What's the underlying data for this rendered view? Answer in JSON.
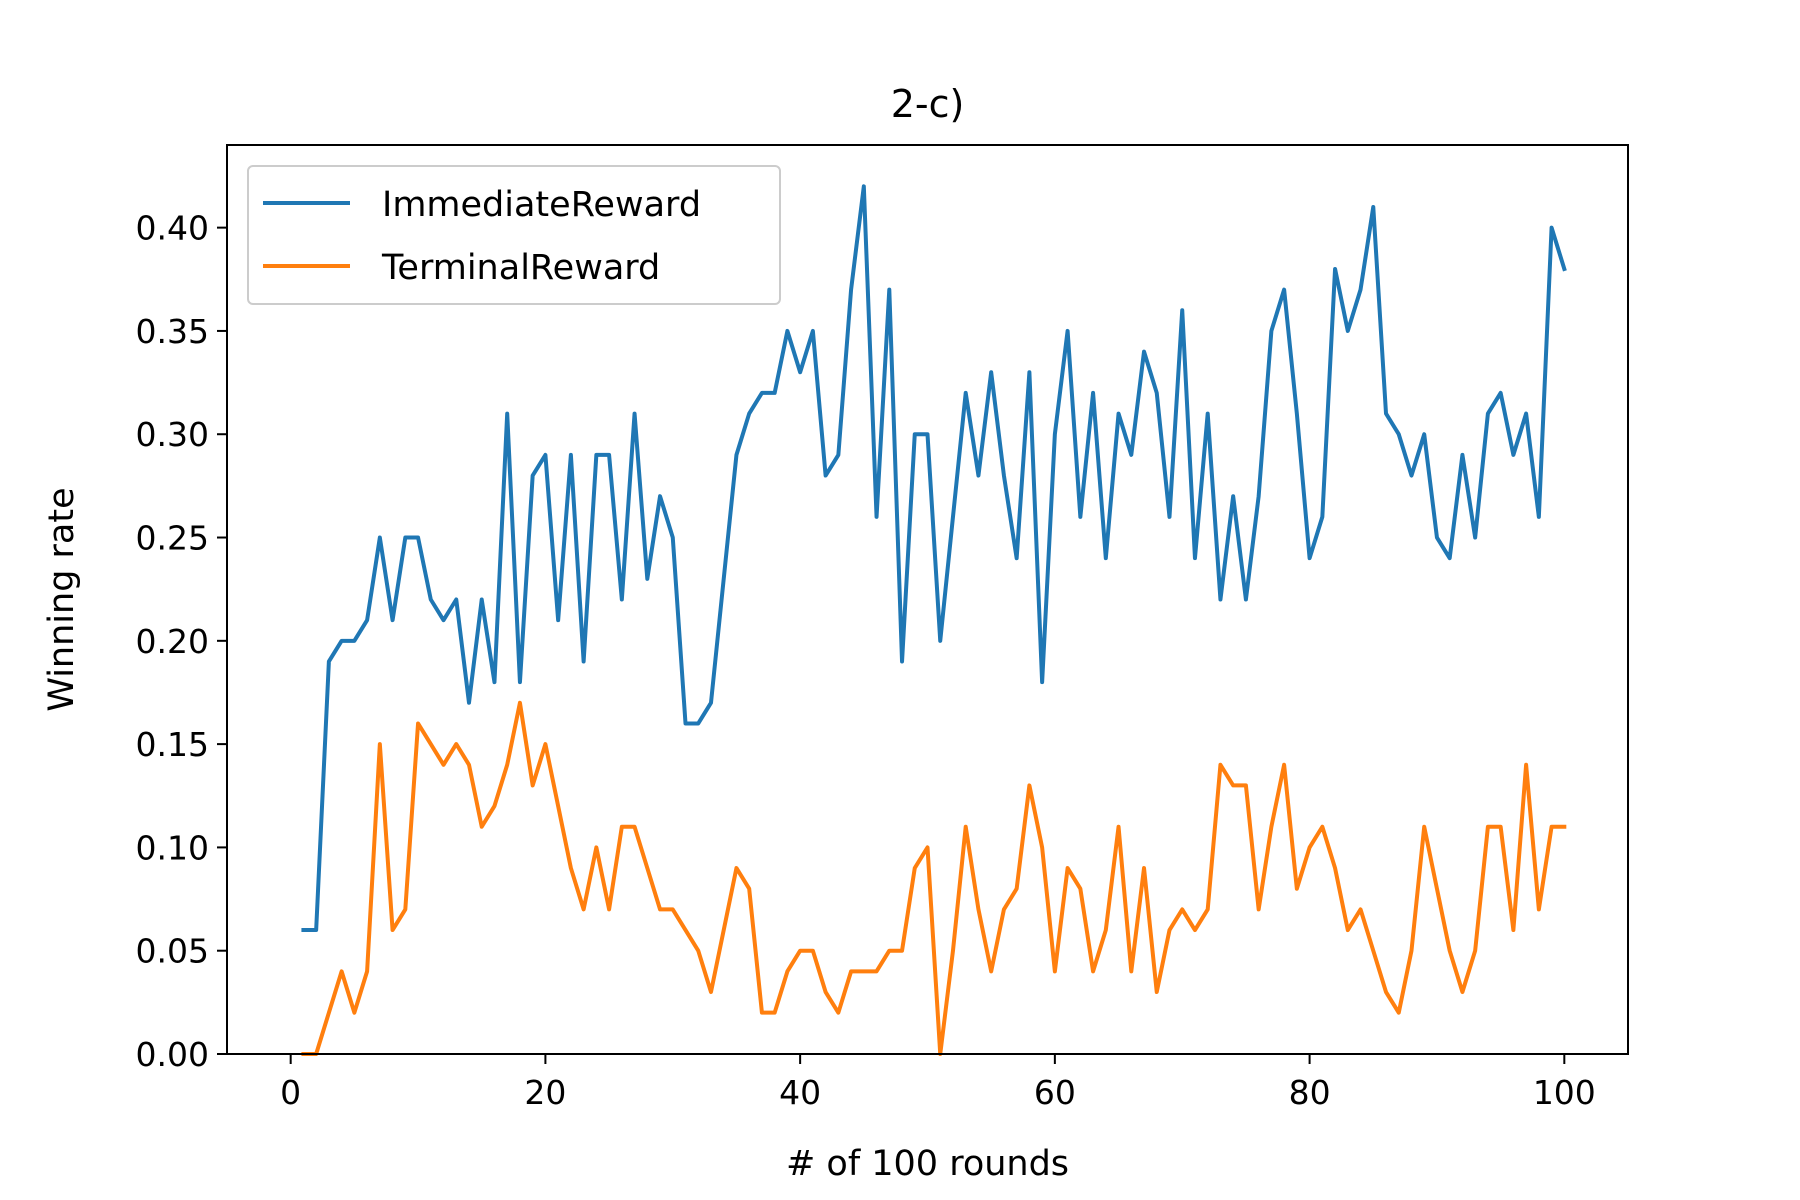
{
  "chart_data": {
    "type": "line",
    "title": "2-c)",
    "xlabel": "# of 100 rounds",
    "ylabel": "Winning rate",
    "xlim": [
      -5,
      105
    ],
    "ylim": [
      0,
      0.44
    ],
    "xticks": [
      0,
      20,
      40,
      60,
      80,
      100
    ],
    "yticks": [
      0.0,
      0.05,
      0.1,
      0.15,
      0.2,
      0.25,
      0.3,
      0.35,
      0.4
    ],
    "grid": false,
    "legend_position": "top-left",
    "x": [
      1,
      2,
      3,
      4,
      5,
      6,
      7,
      8,
      9,
      10,
      11,
      12,
      13,
      14,
      15,
      16,
      17,
      18,
      19,
      20,
      21,
      22,
      23,
      24,
      25,
      26,
      27,
      28,
      29,
      30,
      31,
      32,
      33,
      34,
      35,
      36,
      37,
      38,
      39,
      40,
      41,
      42,
      43,
      44,
      45,
      46,
      47,
      48,
      49,
      50,
      51,
      52,
      53,
      54,
      55,
      56,
      57,
      58,
      59,
      60,
      61,
      62,
      63,
      64,
      65,
      66,
      67,
      68,
      69,
      70,
      71,
      72,
      73,
      74,
      75,
      76,
      77,
      78,
      79,
      80,
      81,
      82,
      83,
      84,
      85,
      86,
      87,
      88,
      89,
      90,
      91,
      92,
      93,
      94,
      95,
      96,
      97,
      98,
      99,
      100
    ],
    "series": [
      {
        "name": "ImmediateReward",
        "color": "#1f77b4",
        "values": [
          0.06,
          0.06,
          0.19,
          0.2,
          0.2,
          0.21,
          0.25,
          0.21,
          0.25,
          0.25,
          0.22,
          0.21,
          0.22,
          0.17,
          0.22,
          0.18,
          0.31,
          0.18,
          0.28,
          0.29,
          0.21,
          0.29,
          0.19,
          0.29,
          0.29,
          0.22,
          0.31,
          0.23,
          0.27,
          0.25,
          0.16,
          0.16,
          0.17,
          0.23,
          0.29,
          0.31,
          0.32,
          0.32,
          0.35,
          0.33,
          0.35,
          0.28,
          0.29,
          0.37,
          0.42,
          0.26,
          0.37,
          0.19,
          0.3,
          0.3,
          0.2,
          0.26,
          0.32,
          0.28,
          0.33,
          0.28,
          0.24,
          0.33,
          0.18,
          0.3,
          0.35,
          0.26,
          0.32,
          0.24,
          0.31,
          0.29,
          0.34,
          0.32,
          0.26,
          0.36,
          0.24,
          0.31,
          0.22,
          0.27,
          0.22,
          0.27,
          0.35,
          0.37,
          0.31,
          0.24,
          0.26,
          0.38,
          0.35,
          0.37,
          0.41,
          0.31,
          0.3,
          0.28,
          0.3,
          0.25,
          0.24,
          0.29,
          0.25,
          0.31,
          0.32,
          0.29,
          0.31,
          0.26,
          0.4,
          0.38
        ]
      },
      {
        "name": "TerminalReward",
        "color": "#ff7f0e",
        "values": [
          0.0,
          0.0,
          0.02,
          0.04,
          0.02,
          0.04,
          0.15,
          0.06,
          0.07,
          0.16,
          0.15,
          0.14,
          0.15,
          0.14,
          0.11,
          0.12,
          0.14,
          0.17,
          0.13,
          0.15,
          0.12,
          0.09,
          0.07,
          0.1,
          0.07,
          0.11,
          0.11,
          0.09,
          0.07,
          0.07,
          0.06,
          0.05,
          0.03,
          0.06,
          0.09,
          0.08,
          0.02,
          0.02,
          0.04,
          0.05,
          0.05,
          0.03,
          0.02,
          0.04,
          0.04,
          0.04,
          0.05,
          0.05,
          0.09,
          0.1,
          0.0,
          0.05,
          0.11,
          0.07,
          0.04,
          0.07,
          0.08,
          0.13,
          0.1,
          0.04,
          0.09,
          0.08,
          0.04,
          0.06,
          0.11,
          0.04,
          0.09,
          0.03,
          0.06,
          0.07,
          0.06,
          0.07,
          0.14,
          0.13,
          0.13,
          0.07,
          0.11,
          0.14,
          0.08,
          0.1,
          0.11,
          0.09,
          0.06,
          0.07,
          0.05,
          0.03,
          0.02,
          0.05,
          0.11,
          0.08,
          0.05,
          0.03,
          0.05,
          0.11,
          0.11,
          0.06,
          0.14,
          0.07,
          0.11,
          0.11
        ]
      }
    ]
  }
}
